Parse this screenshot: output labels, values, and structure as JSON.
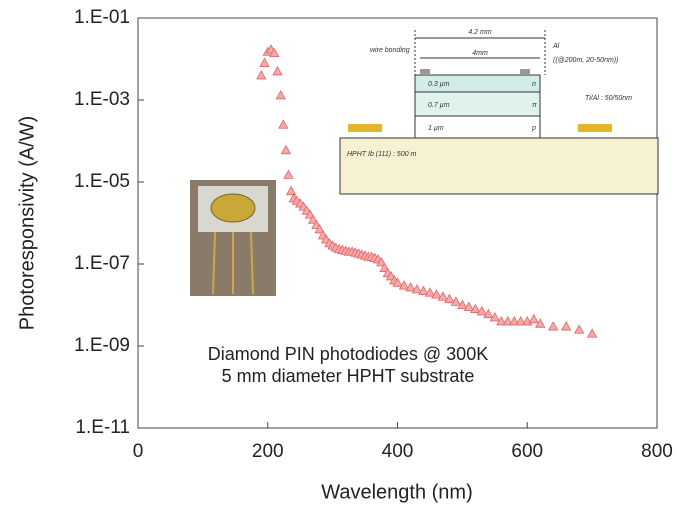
{
  "chart_data": {
    "type": "scatter",
    "log_y": true,
    "color": "#e06666",
    "x_label": "Wavelength (nm)",
    "y_label": "Photoresponsivity (A/W)",
    "xlim": [
      0,
      800
    ],
    "xticks": [
      0,
      200,
      400,
      600,
      800
    ],
    "ylim": [
      1e-11,
      0.1
    ],
    "yticks": [
      {
        "value": 0.1,
        "label": "1.E-01"
      },
      {
        "value": 0.001,
        "label": "1.E-03"
      },
      {
        "value": 1e-05,
        "label": "1.E-05"
      },
      {
        "value": 1e-07,
        "label": "1.E-07"
      },
      {
        "value": 1e-09,
        "label": "1.E-09"
      },
      {
        "value": 1e-11,
        "label": "1.E-11"
      }
    ],
    "annotations": [
      "Diamond PIN photodiodes @ 300K",
      "5 mm diameter HPHT substrate"
    ],
    "inset_labels": [
      "4.2 mm",
      "4mm",
      "wire bonding",
      "Al",
      "((@200m, 20-50nm))",
      "0.3  µm",
      "n",
      "0.7  µm",
      "π",
      "1    µm",
      "p",
      "Ti/Al : 50/50nm",
      "HPHT Ib (111) : 500 m"
    ],
    "x": [
      190,
      195,
      200,
      205,
      210,
      215,
      220,
      224,
      228,
      232,
      236,
      240,
      245,
      250,
      255,
      260,
      265,
      270,
      275,
      280,
      285,
      290,
      295,
      300,
      305,
      310,
      315,
      320,
      325,
      330,
      335,
      340,
      345,
      350,
      355,
      360,
      365,
      370,
      375,
      380,
      385,
      390,
      395,
      400,
      410,
      420,
      430,
      440,
      450,
      460,
      470,
      480,
      490,
      500,
      510,
      520,
      530,
      540,
      550,
      560,
      570,
      580,
      590,
      600,
      610,
      620,
      640,
      660,
      680,
      700
    ],
    "values": [
      0.004,
      0.008,
      0.015,
      0.017,
      0.014,
      0.005,
      0.0013,
      0.00025,
      6e-05,
      1.5e-05,
      6e-06,
      4e-06,
      3.5e-06,
      3e-06,
      2.5e-06,
      2e-06,
      1.6e-06,
      1.2e-06,
      9e-07,
      7e-07,
      5e-07,
      4e-07,
      3.2e-07,
      2.8e-07,
      2.5e-07,
      2.3e-07,
      2.2e-07,
      2.1e-07,
      2e-07,
      2e-07,
      1.9e-07,
      1.8e-07,
      1.7e-07,
      1.6e-07,
      1.5e-07,
      1.5e-07,
      1.4e-07,
      1.3e-07,
      1.1e-07,
      8e-08,
      6e-08,
      5e-08,
      4e-08,
      3.5e-08,
      3e-08,
      2.7e-08,
      2.4e-08,
      2.2e-08,
      2e-08,
      1.8e-08,
      1.6e-08,
      1.4e-08,
      1.2e-08,
      1e-08,
      9e-09,
      8e-09,
      7e-09,
      6e-09,
      5e-09,
      4e-09,
      4e-09,
      4e-09,
      4e-09,
      4e-09,
      4.5e-09,
      3.5e-09,
      3e-09,
      3e-09,
      2.5e-09,
      2e-09
    ]
  }
}
